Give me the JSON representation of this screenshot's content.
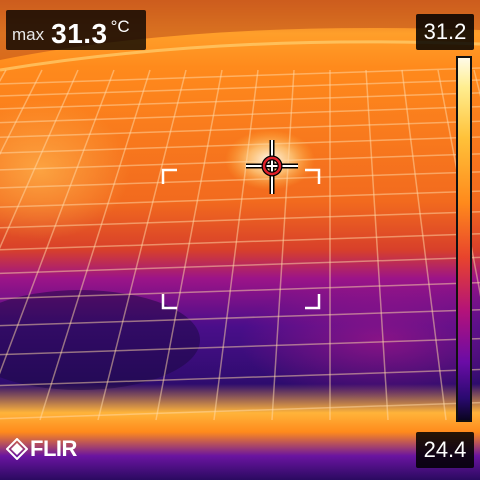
{
  "readout": {
    "label": "max",
    "value": "31.3",
    "unit": "°C"
  },
  "scale": {
    "max": "31.2",
    "min": "24.4"
  },
  "brand": {
    "name": "FLIR"
  },
  "icons": [
    "crosshair-icon",
    "flir-logo-icon"
  ],
  "palette": {
    "hot": "#fff8d8",
    "warm": "#ff9a20",
    "mid": "#e04a30",
    "cool": "#9a1490",
    "cold": "#3a0c80"
  }
}
